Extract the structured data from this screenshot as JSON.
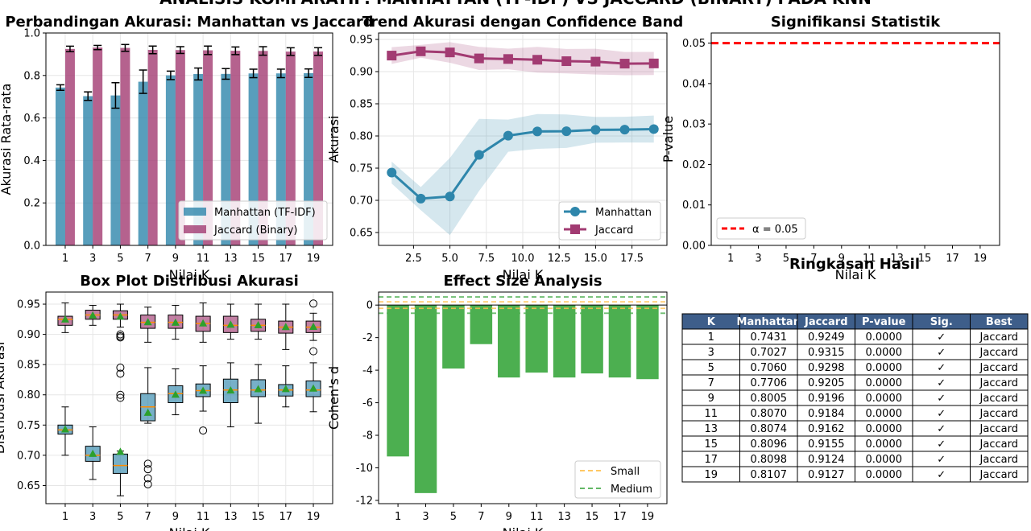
{
  "suptitle": "ANALISIS KOMPARATIF: MANHATTAN (TF-IDF) VS JACCARD (BINARY) PADA KNN",
  "colors": {
    "manhattan": "#2E86AB",
    "jaccard": "#A23B72",
    "effect": "#4CAF50",
    "alpha": "#FF0000",
    "table_header": "#3E5E8A"
  },
  "chart_data": [
    {
      "type": "bar",
      "title": "Perbandingan Akurasi: Manhattan vs Jaccard",
      "xlabel": "Nilai K",
      "ylabel": "Akurasi Rata-rata",
      "categories": [
        "1",
        "3",
        "5",
        "7",
        "9",
        "11",
        "13",
        "15",
        "17",
        "19"
      ],
      "ylim": [
        0,
        1.0
      ],
      "yticks": [
        "0.0",
        "0.2",
        "0.4",
        "0.6",
        "0.8",
        "1.0"
      ],
      "series": [
        {
          "name": "Manhattan (TF-IDF)",
          "values": [
            0.7431,
            0.7027,
            0.706,
            0.7706,
            0.8005,
            0.807,
            0.8074,
            0.8096,
            0.8098,
            0.8107
          ],
          "errors": [
            0.013,
            0.02,
            0.06,
            0.055,
            0.02,
            0.028,
            0.025,
            0.02,
            0.02,
            0.02
          ]
        },
        {
          "name": "Jaccard (Binary)",
          "values": [
            0.9249,
            0.9315,
            0.9298,
            0.9205,
            0.9196,
            0.9184,
            0.9162,
            0.9155,
            0.9124,
            0.9127
          ],
          "errors": [
            0.013,
            0.01,
            0.016,
            0.018,
            0.016,
            0.02,
            0.018,
            0.02,
            0.018,
            0.018
          ]
        }
      ],
      "legend": "lower-right",
      "grid": true
    },
    {
      "type": "line",
      "title": "Trend Akurasi dengan Confidence Band",
      "xlabel": "Nilai K",
      "ylabel": "Akurasi",
      "x": [
        1,
        3,
        5,
        7,
        9,
        11,
        13,
        15,
        17,
        19
      ],
      "xlim": [
        0.1,
        19.9
      ],
      "ylim": [
        0.63,
        0.96
      ],
      "xticks": [
        "2.5",
        "5.0",
        "7.5",
        "10.0",
        "12.5",
        "15.0",
        "17.5"
      ],
      "yticks": [
        "0.65",
        "0.70",
        "0.75",
        "0.80",
        "0.85",
        "0.90",
        "0.95"
      ],
      "series": [
        {
          "name": "Manhattan",
          "values": [
            0.7431,
            0.7027,
            0.706,
            0.7706,
            0.8005,
            0.807,
            0.8074,
            0.8096,
            0.8098,
            0.8107
          ],
          "band": [
            0.017,
            0.018,
            0.06,
            0.056,
            0.025,
            0.027,
            0.026,
            0.02,
            0.02,
            0.021
          ]
        },
        {
          "name": "Jaccard",
          "values": [
            0.9249,
            0.9315,
            0.9298,
            0.9205,
            0.9196,
            0.9184,
            0.9162,
            0.9155,
            0.9124,
            0.9127
          ],
          "band": [
            0.013,
            0.01,
            0.016,
            0.018,
            0.016,
            0.02,
            0.019,
            0.02,
            0.018,
            0.018
          ]
        }
      ],
      "legend": "lower-right",
      "grid": true
    },
    {
      "type": "bar",
      "title": "Signifikansi Statistik",
      "xlabel": "Nilai K",
      "ylabel": "P-value",
      "categories": [
        "1",
        "3",
        "5",
        "7",
        "9",
        "11",
        "13",
        "15",
        "17",
        "19"
      ],
      "values": [
        0,
        0,
        0,
        0,
        0,
        0,
        0,
        0,
        0,
        0
      ],
      "ylim": [
        0,
        0.0525
      ],
      "yticks": [
        "0.00",
        "0.01",
        "0.02",
        "0.03",
        "0.04",
        "0.05"
      ],
      "reference_line": {
        "name": "α = 0.05",
        "value": 0.05
      },
      "legend": "lower-left"
    },
    {
      "type": "box",
      "title": "Box Plot Distribusi Akurasi",
      "xlabel": "Nilai K",
      "ylabel": "Distribusi Akurasi",
      "categories": [
        "1",
        "3",
        "5",
        "7",
        "9",
        "11",
        "13",
        "15",
        "17",
        "19"
      ],
      "ylim": [
        0.62,
        0.97
      ],
      "yticks": [
        "0.65",
        "0.70",
        "0.75",
        "0.80",
        "0.85",
        "0.90",
        "0.95"
      ],
      "manhattan": [
        {
          "whisker_low": 0.7,
          "q1": 0.735,
          "median": 0.742,
          "q3": 0.75,
          "whisker_high": 0.78,
          "mean": 0.7431,
          "outliers": []
        },
        {
          "whisker_low": 0.66,
          "q1": 0.69,
          "median": 0.7,
          "q3": 0.715,
          "whisker_high": 0.747,
          "mean": 0.7027,
          "outliers": []
        },
        {
          "whisker_low": 0.633,
          "q1": 0.67,
          "median": 0.683,
          "q3": 0.702,
          "whisker_high": 0.707,
          "mean": 0.706,
          "outliers": [
            0.8,
            0.795,
            0.835,
            0.845
          ]
        },
        {
          "whisker_low": 0.753,
          "q1": 0.757,
          "median": 0.78,
          "q3": 0.802,
          "whisker_high": 0.845,
          "mean": 0.7706,
          "outliers": [
            0.686,
            0.677,
            0.662,
            0.652
          ]
        },
        {
          "whisker_low": 0.767,
          "q1": 0.787,
          "median": 0.802,
          "q3": 0.815,
          "whisker_high": 0.843,
          "mean": 0.8005,
          "outliers": []
        },
        {
          "whisker_low": 0.773,
          "q1": 0.797,
          "median": 0.807,
          "q3": 0.818,
          "whisker_high": 0.848,
          "mean": 0.807,
          "outliers": [
            0.741
          ]
        },
        {
          "whisker_low": 0.747,
          "q1": 0.787,
          "median": 0.808,
          "q3": 0.826,
          "whisker_high": 0.853,
          "mean": 0.8074,
          "outliers": []
        },
        {
          "whisker_low": 0.753,
          "q1": 0.797,
          "median": 0.808,
          "q3": 0.825,
          "whisker_high": 0.85,
          "mean": 0.8096,
          "outliers": []
        },
        {
          "whisker_low": 0.78,
          "q1": 0.798,
          "median": 0.808,
          "q3": 0.817,
          "whisker_high": 0.848,
          "mean": 0.8098,
          "outliers": []
        },
        {
          "whisker_low": 0.772,
          "q1": 0.797,
          "median": 0.808,
          "q3": 0.823,
          "whisker_high": 0.853,
          "mean": 0.8107,
          "outliers": []
        }
      ],
      "jaccard": [
        {
          "whisker_low": 0.903,
          "q1": 0.915,
          "median": 0.925,
          "q3": 0.93,
          "whisker_high": 0.952,
          "mean": 0.9249,
          "outliers": []
        },
        {
          "whisker_low": 0.915,
          "q1": 0.925,
          "median": 0.932,
          "q3": 0.94,
          "whisker_high": 0.948,
          "mean": 0.9315,
          "outliers": []
        },
        {
          "whisker_low": 0.912,
          "q1": 0.925,
          "median": 0.932,
          "q3": 0.939,
          "whisker_high": 0.95,
          "mean": 0.9298,
          "outliers": [
            0.9,
            0.897,
            0.895
          ]
        },
        {
          "whisker_low": 0.887,
          "q1": 0.91,
          "median": 0.92,
          "q3": 0.932,
          "whisker_high": 0.945,
          "mean": 0.9205,
          "outliers": []
        },
        {
          "whisker_low": 0.892,
          "q1": 0.91,
          "median": 0.92,
          "q3": 0.932,
          "whisker_high": 0.948,
          "mean": 0.9196,
          "outliers": []
        },
        {
          "whisker_low": 0.887,
          "q1": 0.905,
          "median": 0.918,
          "q3": 0.93,
          "whisker_high": 0.952,
          "mean": 0.9184,
          "outliers": []
        },
        {
          "whisker_low": 0.892,
          "q1": 0.903,
          "median": 0.915,
          "q3": 0.93,
          "whisker_high": 0.95,
          "mean": 0.9162,
          "outliers": []
        },
        {
          "whisker_low": 0.892,
          "q1": 0.905,
          "median": 0.915,
          "q3": 0.925,
          "whisker_high": 0.95,
          "mean": 0.9155,
          "outliers": []
        },
        {
          "whisker_low": 0.875,
          "q1": 0.902,
          "median": 0.912,
          "q3": 0.922,
          "whisker_high": 0.95,
          "mean": 0.9124,
          "outliers": []
        },
        {
          "whisker_low": 0.89,
          "q1": 0.903,
          "median": 0.912,
          "q3": 0.922,
          "whisker_high": 0.935,
          "mean": 0.9127,
          "outliers": [
            0.951,
            0.872
          ]
        }
      ]
    },
    {
      "type": "bar",
      "title": "Effect Size Analysis",
      "xlabel": "Nilai K",
      "ylabel": "Cohen's d",
      "categories": [
        "1",
        "3",
        "5",
        "7",
        "9",
        "11",
        "13",
        "15",
        "17",
        "19"
      ],
      "values": [
        -9.3,
        -11.55,
        -3.9,
        -2.4,
        -4.45,
        -4.15,
        -4.45,
        -4.2,
        -4.45,
        -4.55
      ],
      "ylim": [
        -12.2,
        0.8
      ],
      "yticks": [
        "0",
        "-2",
        "-4",
        "-6",
        "-8",
        "-10",
        "-12"
      ],
      "reference_lines": [
        {
          "name": "Small",
          "values": [
            0.2,
            -0.2
          ],
          "color": "#FFC04D"
        },
        {
          "name": "Medium",
          "values": [
            0.5,
            -0.5
          ],
          "color": "#4CAF50"
        }
      ],
      "legend": "lower-right"
    },
    {
      "type": "table",
      "title": "Ringkasan Hasil",
      "columns": [
        "K",
        "Manhattan",
        "Jaccard",
        "P-value",
        "Sig.",
        "Best"
      ],
      "rows": [
        [
          "1",
          "0.7431",
          "0.9249",
          "0.0000",
          "✓",
          "Jaccard"
        ],
        [
          "3",
          "0.7027",
          "0.9315",
          "0.0000",
          "✓",
          "Jaccard"
        ],
        [
          "5",
          "0.7060",
          "0.9298",
          "0.0000",
          "✓",
          "Jaccard"
        ],
        [
          "7",
          "0.7706",
          "0.9205",
          "0.0000",
          "✓",
          "Jaccard"
        ],
        [
          "9",
          "0.8005",
          "0.9196",
          "0.0000",
          "✓",
          "Jaccard"
        ],
        [
          "11",
          "0.8070",
          "0.9184",
          "0.0000",
          "✓",
          "Jaccard"
        ],
        [
          "13",
          "0.8074",
          "0.9162",
          "0.0000",
          "✓",
          "Jaccard"
        ],
        [
          "15",
          "0.8096",
          "0.9155",
          "0.0000",
          "✓",
          "Jaccard"
        ],
        [
          "17",
          "0.8098",
          "0.9124",
          "0.0000",
          "✓",
          "Jaccard"
        ],
        [
          "19",
          "0.8107",
          "0.9127",
          "0.0000",
          "✓",
          "Jaccard"
        ]
      ]
    }
  ]
}
